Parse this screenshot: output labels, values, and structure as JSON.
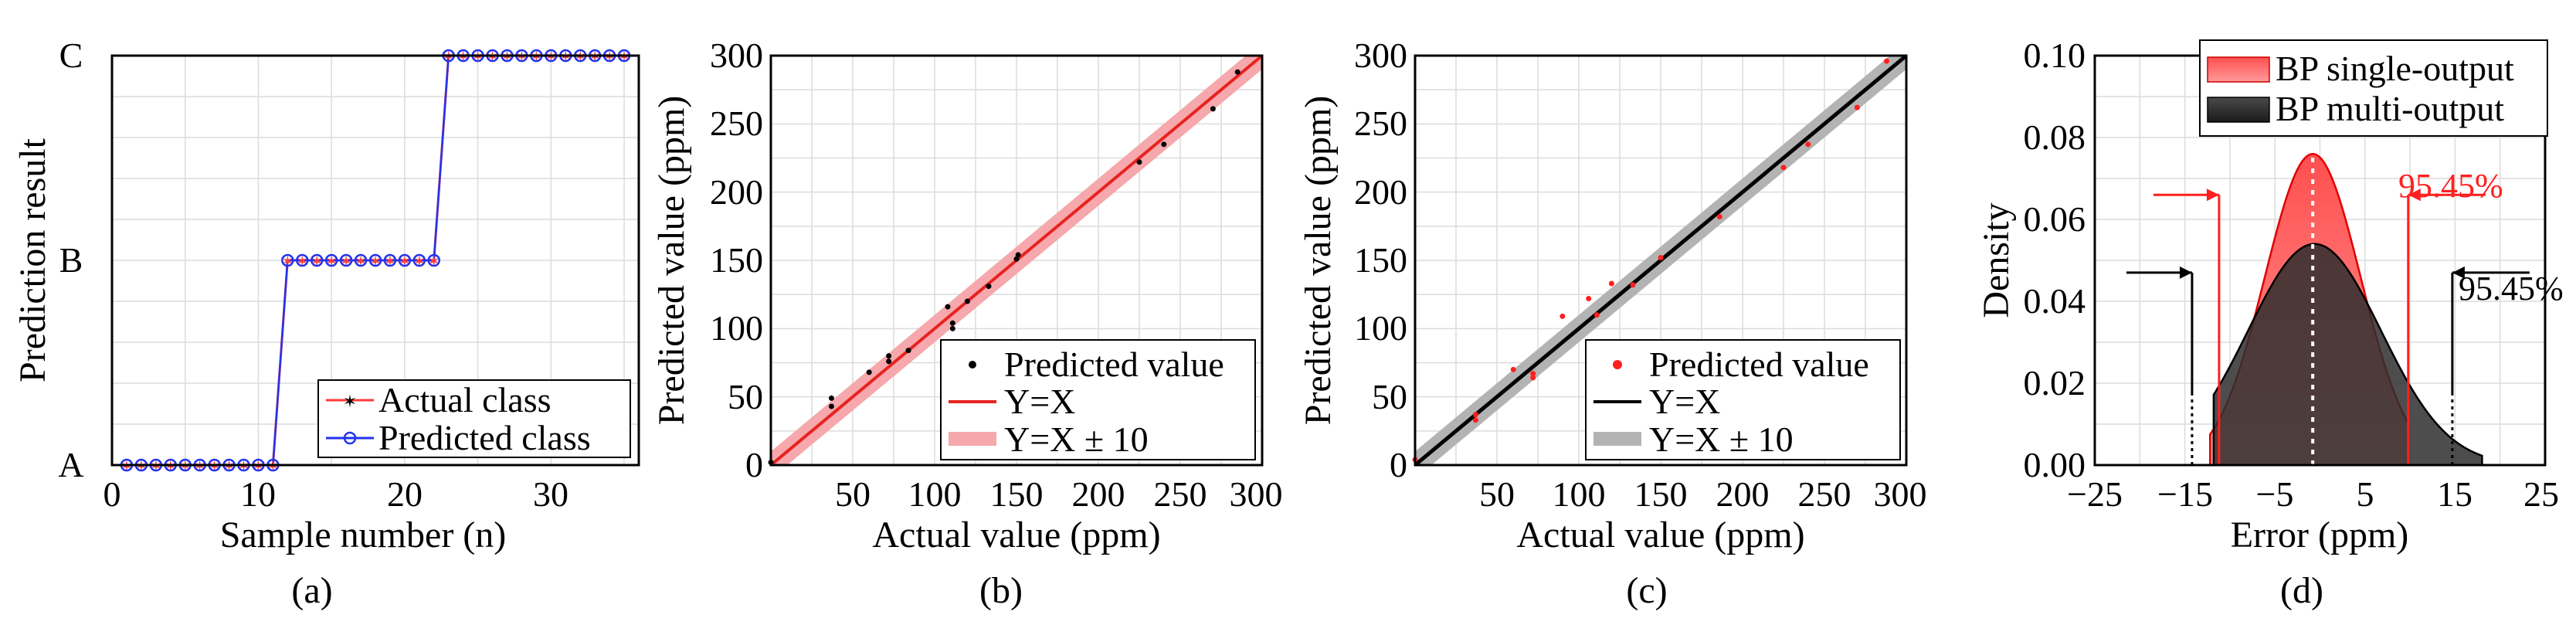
{
  "chart_data": [
    {
      "id": "a",
      "type": "line",
      "caption": "(a)",
      "xlabel": "Sample number (n)",
      "ylabel": "Prediction result",
      "xlim": [
        0,
        36
      ],
      "xticks": [
        "0",
        "10",
        "20",
        "30"
      ],
      "yticks": [
        "A",
        "B",
        "C"
      ],
      "grid": true,
      "legend_position": "bottom-right",
      "series": [
        {
          "name": "Actual class",
          "color": "#ff3b3b",
          "marker": "star",
          "x": [
            1,
            2,
            3,
            4,
            5,
            6,
            7,
            8,
            9,
            10,
            11,
            12,
            13,
            14,
            15,
            16,
            17,
            18,
            19,
            20,
            21,
            22,
            23,
            24,
            25,
            26,
            27,
            28,
            29,
            30,
            31,
            32,
            33,
            34,
            35
          ],
          "classes": [
            "A",
            "A",
            "A",
            "A",
            "A",
            "A",
            "A",
            "A",
            "A",
            "A",
            "A",
            "B",
            "B",
            "B",
            "B",
            "B",
            "B",
            "B",
            "B",
            "B",
            "B",
            "B",
            "C",
            "C",
            "C",
            "C",
            "C",
            "C",
            "C",
            "C",
            "C",
            "C",
            "C",
            "C",
            "C"
          ]
        },
        {
          "name": "Predicted class",
          "color": "#2233ee",
          "marker": "circle",
          "x": [
            1,
            2,
            3,
            4,
            5,
            6,
            7,
            8,
            9,
            10,
            11,
            12,
            13,
            14,
            15,
            16,
            17,
            18,
            19,
            20,
            21,
            22,
            23,
            24,
            25,
            26,
            27,
            28,
            29,
            30,
            31,
            32,
            33,
            34,
            35
          ],
          "classes": [
            "A",
            "A",
            "A",
            "A",
            "A",
            "A",
            "A",
            "A",
            "A",
            "A",
            "A",
            "B",
            "B",
            "B",
            "B",
            "B",
            "B",
            "B",
            "B",
            "B",
            "B",
            "B",
            "C",
            "C",
            "C",
            "C",
            "C",
            "C",
            "C",
            "C",
            "C",
            "C",
            "C",
            "C",
            "C"
          ]
        }
      ]
    },
    {
      "id": "b",
      "type": "scatter",
      "caption": "(b)",
      "xlabel": "Actual value (ppm)",
      "ylabel": "Predicted value (ppm)",
      "xlim": [
        0,
        300
      ],
      "ylim": [
        0,
        300
      ],
      "xticks": [
        "50",
        "100",
        "150",
        "200",
        "250",
        "300"
      ],
      "yticks": [
        "0",
        "50",
        "100",
        "150",
        "200",
        "250",
        "300"
      ],
      "grid": true,
      "legend_position": "bottom-right",
      "points_label": "Predicted value",
      "line_label": "Y=X",
      "band_label": "Y=X ± 10",
      "point_color": "#000000",
      "line_color": "#e8221f",
      "band_color": "#f6a8ac",
      "x": [
        0,
        37,
        37,
        60,
        72,
        72,
        84,
        108,
        111,
        111,
        120,
        133,
        150,
        151,
        225,
        240,
        270,
        285
      ],
      "y": [
        2,
        43,
        49,
        68,
        76,
        80,
        84,
        116,
        104,
        100,
        120,
        131,
        151,
        154,
        222,
        235,
        261,
        288
      ]
    },
    {
      "id": "c",
      "type": "scatter",
      "caption": "(c)",
      "xlabel": "Actual value (ppm)",
      "ylabel": "Predicted value (ppm)",
      "xlim": [
        0,
        300
      ],
      "ylim": [
        0,
        300
      ],
      "xticks": [
        "50",
        "100",
        "150",
        "200",
        "250",
        "300"
      ],
      "yticks": [
        "0",
        "50",
        "100",
        "150",
        "200",
        "250",
        "300"
      ],
      "grid": true,
      "legend_position": "bottom-right",
      "points_label": "Predicted value",
      "line_label": "Y=X",
      "band_label": "Y=X ± 10",
      "point_color": "#ff1f1f",
      "line_color": "#000000",
      "band_color": "#b3b3b3",
      "x": [
        0,
        37,
        37,
        60,
        72,
        72,
        90,
        106,
        111,
        120,
        133,
        150,
        186,
        225,
        240,
        270,
        288
      ],
      "y": [
        4,
        33,
        37,
        70,
        64,
        67,
        109,
        122,
        110,
        133,
        132,
        152,
        182,
        218,
        235,
        262,
        296
      ]
    },
    {
      "id": "d",
      "type": "area",
      "caption": "(d)",
      "xlabel": "Error (ppm)",
      "ylabel": "Density",
      "xlim": [
        -25,
        25
      ],
      "ylim": [
        0,
        0.1
      ],
      "xticks": [
        "−25",
        "−15",
        "−5",
        "5",
        "15",
        "25"
      ],
      "yticks": [
        "0.00",
        "0.02",
        "0.04",
        "0.06",
        "0.08",
        "0.10"
      ],
      "grid": true,
      "legend_position": "top-right",
      "series": [
        {
          "name": "BP single-output",
          "mean": -0.8,
          "peak_density": 0.076,
          "x_range": [
            -12.2,
            9.8
          ],
          "interval_95": [
            -11.2,
            9.8
          ],
          "interval_label": "95.45%",
          "color": "#ff3b3b"
        },
        {
          "name": "BP multi-output",
          "mean": -0.6,
          "peak_density": 0.054,
          "x_range": [
            -11.8,
            18.0
          ],
          "interval_95": [
            -14.2,
            14.7
          ],
          "interval_label": "95.45%",
          "color": "#3a3a3a"
        }
      ]
    }
  ]
}
